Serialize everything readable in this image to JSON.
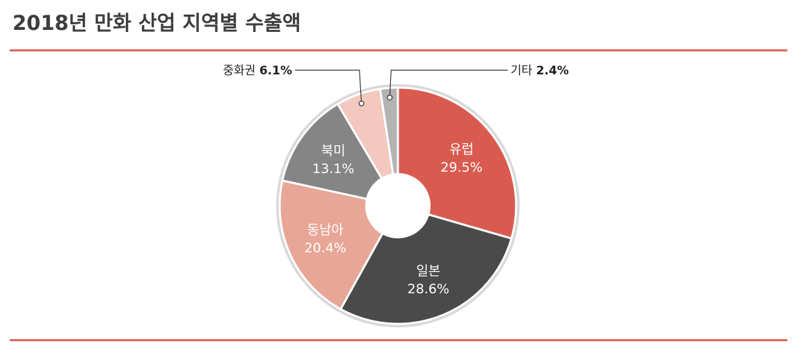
{
  "page": {
    "title": "2018년 만화 산업 지역별 수출액"
  },
  "chart_data": {
    "type": "pie",
    "donut": true,
    "title": "2018년 만화 산업 지역별 수출액",
    "legend": "none",
    "slices": [
      {
        "name": "유럽",
        "value": 29.5,
        "label": "29.5%",
        "color": "#d95b50",
        "placement": "inside"
      },
      {
        "name": "일본",
        "value": 28.6,
        "label": "28.6%",
        "color": "#4a4a4a",
        "placement": "inside"
      },
      {
        "name": "동남아",
        "value": 20.4,
        "label": "20.4%",
        "color": "#e8a697",
        "placement": "inside"
      },
      {
        "name": "북미",
        "value": 13.1,
        "label": "13.1%",
        "color": "#858585",
        "placement": "inside"
      },
      {
        "name": "중화권",
        "value": 6.1,
        "label": "6.1%",
        "color": "#f2c8bf",
        "placement": "callout-left"
      },
      {
        "name": "기타",
        "value": 2.4,
        "label": "2.4%",
        "color": "#b3b3b3",
        "placement": "callout-right"
      }
    ]
  }
}
